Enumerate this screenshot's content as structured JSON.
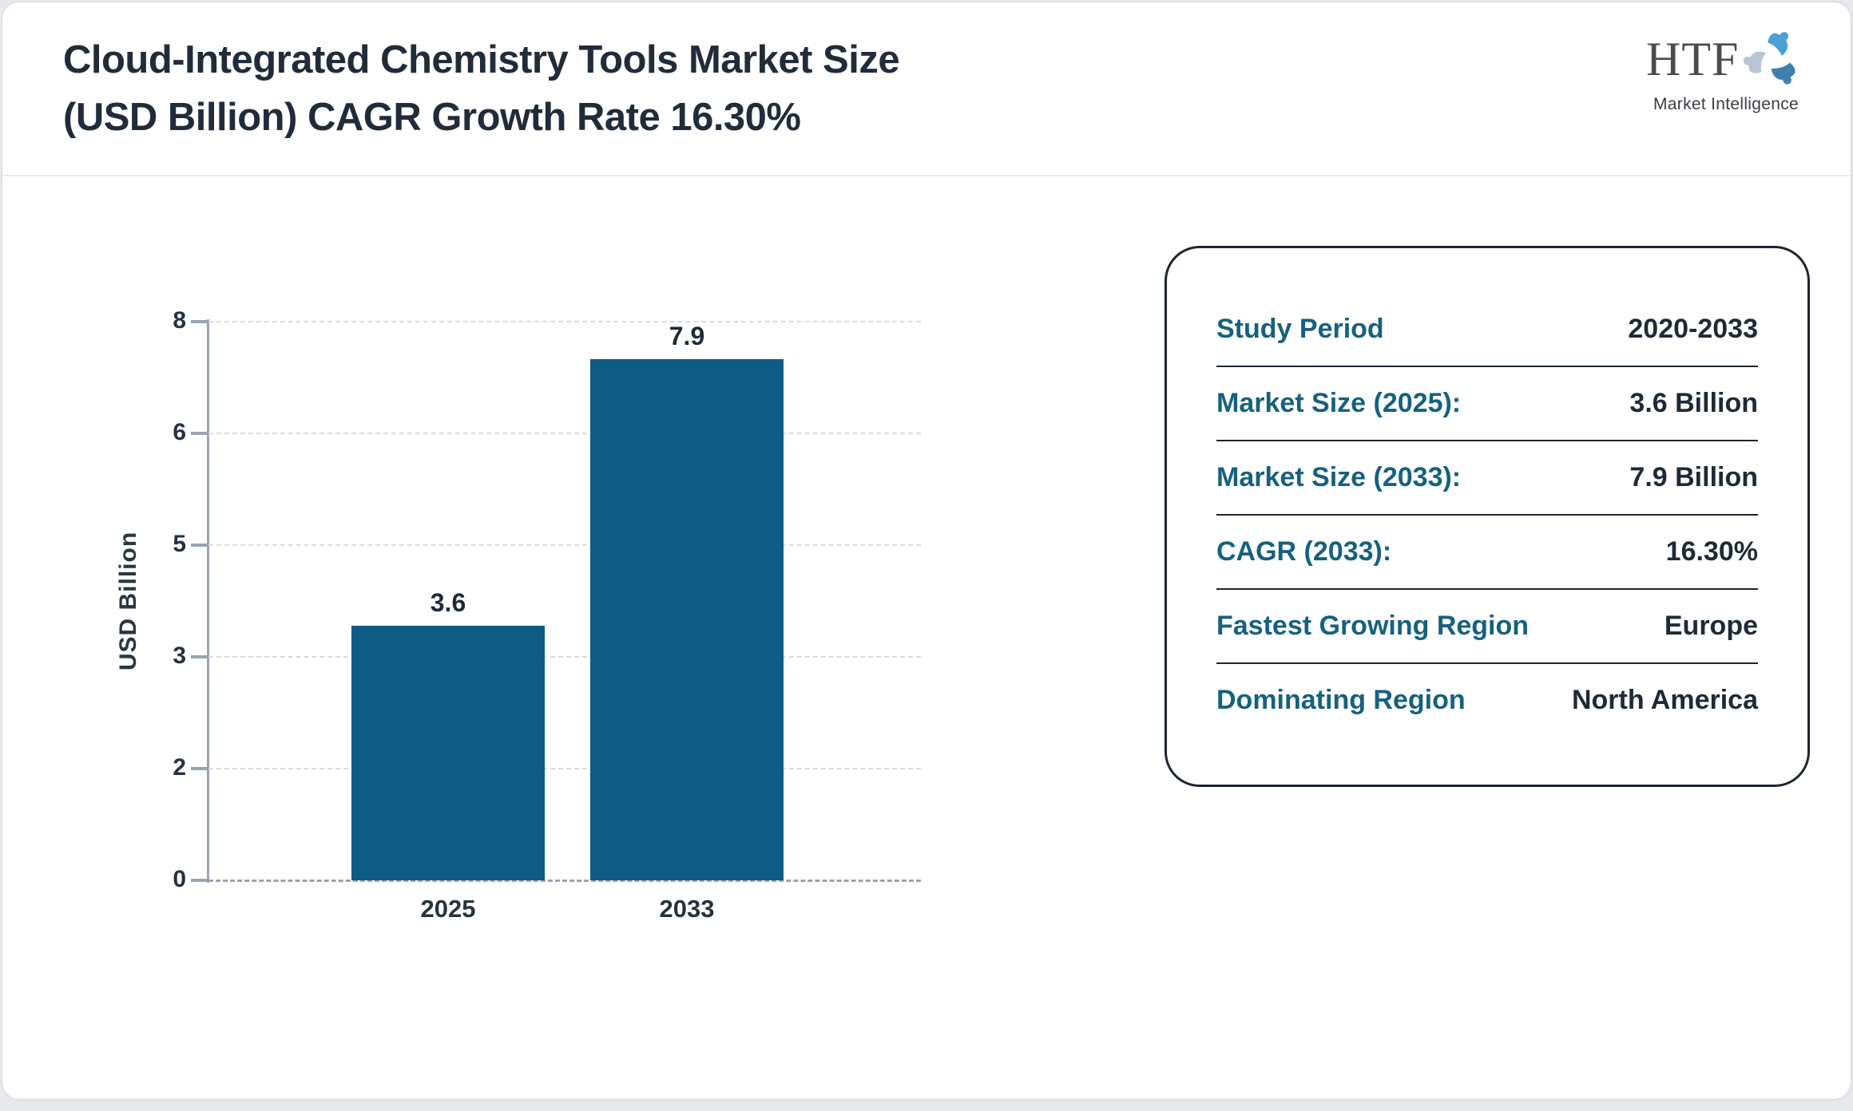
{
  "header": {
    "title_line1": "Cloud-Integrated Chemistry Tools Market Size",
    "title_line2": "(USD Billion) CAGR Growth Rate 16.30%",
    "logo": {
      "name": "HTF",
      "tagline": "Market Intelligence"
    }
  },
  "chart_data": {
    "type": "bar",
    "title": "Cloud-Integrated Chemistry Tools Market Size (USD Billion) CAGR Growth Rate 16.30%",
    "categories": [
      "2025",
      "2033"
    ],
    "values": [
      3.6,
      7.9
    ],
    "bar_labels": [
      "3.6",
      "7.9"
    ],
    "xlabel": "",
    "ylabel": "USD Billion",
    "ylim": [
      0,
      7.9
    ],
    "yticks": [
      0,
      2,
      3,
      5,
      6,
      8
    ],
    "grid": "horizontal-dashed",
    "legend": "none",
    "bar_color": "#0e5c84",
    "label_color": "#1f2a38",
    "axis_color": "#9aa4ae"
  },
  "info_panel": {
    "label_color": "#16617f",
    "value_color": "#1f2a38",
    "rows": [
      {
        "label": "Study Period",
        "value": "2020-2033"
      },
      {
        "label": "Market Size (2025):",
        "value": "3.6 Billion"
      },
      {
        "label": "Market Size (2033):",
        "value": "7.9 Billion"
      },
      {
        "label": "CAGR (2033):",
        "value": "16.30%"
      },
      {
        "label": "Fastest Growing Region",
        "value": "Europe"
      },
      {
        "label": "Dominating Region",
        "value": "North America"
      }
    ]
  }
}
